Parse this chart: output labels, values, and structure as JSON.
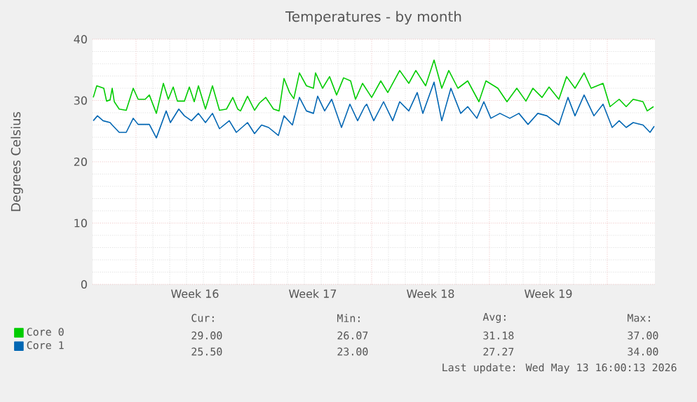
{
  "chart_data": {
    "type": "line",
    "title": "Temperatures - by month",
    "ylabel": "Degrees Celsius",
    "xlim": [
      "2026-04-10T10:00",
      "2026-05-13T20:00"
    ],
    "ylim": [
      0,
      40
    ],
    "yticks": [
      0,
      10,
      20,
      30,
      40
    ],
    "xticks": [
      {
        "value": "2026-04-13",
        "label": null
      },
      {
        "value": "2026-04-16T12:00",
        "label": "Week 16"
      },
      {
        "value": "2026-04-20",
        "label": null
      },
      {
        "value": "2026-04-23T12:00",
        "label": "Week 17"
      },
      {
        "value": "2026-04-27",
        "label": null
      },
      {
        "value": "2026-04-30T12:00",
        "label": "Week 18"
      },
      {
        "value": "2026-05-04",
        "label": null
      },
      {
        "value": "2026-05-07T12:00",
        "label": "Week 19"
      },
      {
        "value": "2026-05-11",
        "label": null
      }
    ],
    "grid": true,
    "legend": "bottom left",
    "marker": "none",
    "line_style": "solid",
    "series": [
      {
        "name": "Core 0",
        "color": "#00cc00",
        "x": [
          "2026-04-10T11:00",
          "2026-04-10T16:00",
          "2026-04-11T02:00",
          "2026-04-11T06:00",
          "2026-04-11T11:00",
          "2026-04-11T14:00",
          "2026-04-11T17:00",
          "2026-04-12T00:00",
          "2026-04-12T10:00",
          "2026-04-12T20:00",
          "2026-04-13T03:00",
          "2026-04-13T13:00",
          "2026-04-13T19:00",
          "2026-04-14T05:00",
          "2026-04-14T15:00",
          "2026-04-14T22:00",
          "2026-04-15T05:00",
          "2026-04-15T11:00",
          "2026-04-15T21:00",
          "2026-04-16T04:00",
          "2026-04-16T11:00",
          "2026-04-16T17:00",
          "2026-04-17T03:00",
          "2026-04-17T13:00",
          "2026-04-17T23:00",
          "2026-04-18T09:00",
          "2026-04-18T18:00",
          "2026-04-19T01:00",
          "2026-04-19T05:00",
          "2026-04-19T15:00",
          "2026-04-20T01:00",
          "2026-04-20T08:00",
          "2026-04-20T17:00",
          "2026-04-21T04:00",
          "2026-04-21T12:00",
          "2026-04-21T19:00",
          "2026-04-22T03:00",
          "2026-04-22T09:00",
          "2026-04-22T17:00",
          "2026-04-23T03:00",
          "2026-04-23T13:00",
          "2026-04-23T16:00",
          "2026-04-24T02:00",
          "2026-04-24T12:00",
          "2026-04-24T22:00",
          "2026-04-25T08:00",
          "2026-04-25T18:00",
          "2026-04-26T01:00",
          "2026-04-26T11:00",
          "2026-04-27T00:00",
          "2026-04-27T13:00",
          "2026-04-27T23:00",
          "2026-04-28T16:00",
          "2026-04-29T05:00",
          "2026-04-29T15:00",
          "2026-04-30T05:00",
          "2026-04-30T17:00",
          "2026-05-01T04:00",
          "2026-05-01T14:00",
          "2026-05-02T03:00",
          "2026-05-02T17:00",
          "2026-05-03T09:00",
          "2026-05-03T19:00",
          "2026-05-04T12:00",
          "2026-05-05T01:00",
          "2026-05-05T15:00",
          "2026-05-06T04:00",
          "2026-05-06T14:00",
          "2026-05-07T03:00",
          "2026-05-07T13:00",
          "2026-05-08T03:00",
          "2026-05-08T14:00",
          "2026-05-09T02:00",
          "2026-05-09T15:00",
          "2026-05-10T01:00",
          "2026-05-10T18:00",
          "2026-05-11T04:00",
          "2026-05-11T17:00",
          "2026-05-12T03:00",
          "2026-05-12T13:00",
          "2026-05-13T03:00",
          "2026-05-13T09:00",
          "2026-05-13T18:00"
        ],
        "values": [
          30.5,
          32.4,
          32,
          29.9,
          30.1,
          32,
          29.8,
          28.6,
          28.4,
          32,
          30.2,
          30.2,
          30.9,
          27.9,
          32.8,
          30.2,
          32.2,
          29.9,
          29.9,
          32.2,
          29.8,
          32.4,
          28.6,
          32.4,
          28.4,
          28.6,
          30.5,
          28.6,
          28.3,
          30.7,
          28.4,
          29.6,
          30.5,
          28.6,
          28.3,
          33.6,
          31.3,
          30.3,
          34.5,
          32.4,
          32,
          34.5,
          32,
          33.9,
          30.9,
          33.7,
          33.2,
          30.2,
          32.8,
          30.5,
          33.2,
          31.3,
          34.9,
          32.8,
          34.9,
          32.4,
          36.6,
          32,
          34.9,
          32,
          33.2,
          29.8,
          33.2,
          32,
          29.8,
          32,
          29.9,
          32,
          30.5,
          32.2,
          30.2,
          33.9,
          32,
          34.5,
          32,
          32.8,
          29,
          30.2,
          29,
          30.2,
          29.8,
          28.3,
          29
        ]
      },
      {
        "name": "Core 1",
        "color": "#0066b3",
        "x": [
          "2026-04-10T11:00",
          "2026-04-10T17:00",
          "2026-04-11T01:00",
          "2026-04-11T11:00",
          "2026-04-11T14:00",
          "2026-04-12T00:00",
          "2026-04-12T10:00",
          "2026-04-12T20:00",
          "2026-04-13T03:00",
          "2026-04-13T19:00",
          "2026-04-14T05:00",
          "2026-04-14T19:00",
          "2026-04-15T01:00",
          "2026-04-15T13:00",
          "2026-04-15T21:00",
          "2026-04-16T07:00",
          "2026-04-16T17:00",
          "2026-04-17T03:00",
          "2026-04-17T13:00",
          "2026-04-17T23:00",
          "2026-04-18T13:00",
          "2026-04-18T23:00",
          "2026-04-19T15:00",
          "2026-04-20T01:00",
          "2026-04-20T11:00",
          "2026-04-20T21:00",
          "2026-04-21T11:00",
          "2026-04-21T19:00",
          "2026-04-22T07:00",
          "2026-04-22T17:00",
          "2026-04-23T03:00",
          "2026-04-23T13:00",
          "2026-04-23T19:00",
          "2026-04-24T05:00",
          "2026-04-24T15:00",
          "2026-04-25T05:00",
          "2026-04-25T17:00",
          "2026-04-26T04:00",
          "2026-04-26T14:00",
          "2026-04-26T17:00",
          "2026-04-27T03:00",
          "2026-04-27T17:00",
          "2026-04-28T06:00",
          "2026-04-28T16:00",
          "2026-04-29T05:00",
          "2026-04-29T17:00",
          "2026-04-30T01:00",
          "2026-04-30T17:00",
          "2026-05-01T04:00",
          "2026-05-01T17:00",
          "2026-05-02T07:00",
          "2026-05-02T17:00",
          "2026-05-03T06:00",
          "2026-05-03T16:00",
          "2026-05-04T02:00",
          "2026-05-04T15:00",
          "2026-05-05T05:00",
          "2026-05-05T18:00",
          "2026-05-06T07:00",
          "2026-05-06T21:00",
          "2026-05-07T10:00",
          "2026-05-08T03:00",
          "2026-05-08T16:00",
          "2026-05-09T02:00",
          "2026-05-09T15:00",
          "2026-05-10T05:00",
          "2026-05-10T18:00",
          "2026-05-11T07:00",
          "2026-05-11T17:00",
          "2026-05-12T03:00",
          "2026-05-12T13:00",
          "2026-05-13T03:00",
          "2026-05-13T13:00",
          "2026-05-13T19:00"
        ],
        "values": [
          26.7,
          27.5,
          26.7,
          26.4,
          26,
          24.8,
          24.8,
          27.1,
          26.1,
          26.1,
          23.9,
          28.3,
          26.4,
          28.6,
          27.5,
          26.7,
          27.9,
          26.4,
          27.9,
          25.4,
          26.7,
          24.8,
          26.4,
          24.6,
          26,
          25.6,
          24.3,
          27.5,
          26,
          30.5,
          28.3,
          27.9,
          30.7,
          28.3,
          30.2,
          25.6,
          29.4,
          26.7,
          29,
          29.4,
          26.7,
          29.8,
          26.7,
          29.8,
          28.3,
          31.3,
          27.9,
          33,
          26.7,
          32,
          27.9,
          29,
          27.1,
          29.8,
          27.1,
          27.9,
          27.1,
          27.9,
          26.1,
          27.9,
          27.5,
          26,
          30.5,
          27.5,
          30.9,
          27.5,
          29.4,
          25.6,
          26.7,
          25.6,
          26.4,
          26,
          24.8,
          25.8
        ]
      }
    ],
    "annotations": [
      "Cur:",
      "Min:",
      "Avg:",
      "Max:",
      "29.00",
      "26.07",
      "31.18",
      "37.00",
      "25.50",
      "23.00",
      "27.27",
      "34.00",
      "Last update: Wed May 13 16:00:13 2026"
    ]
  }
}
